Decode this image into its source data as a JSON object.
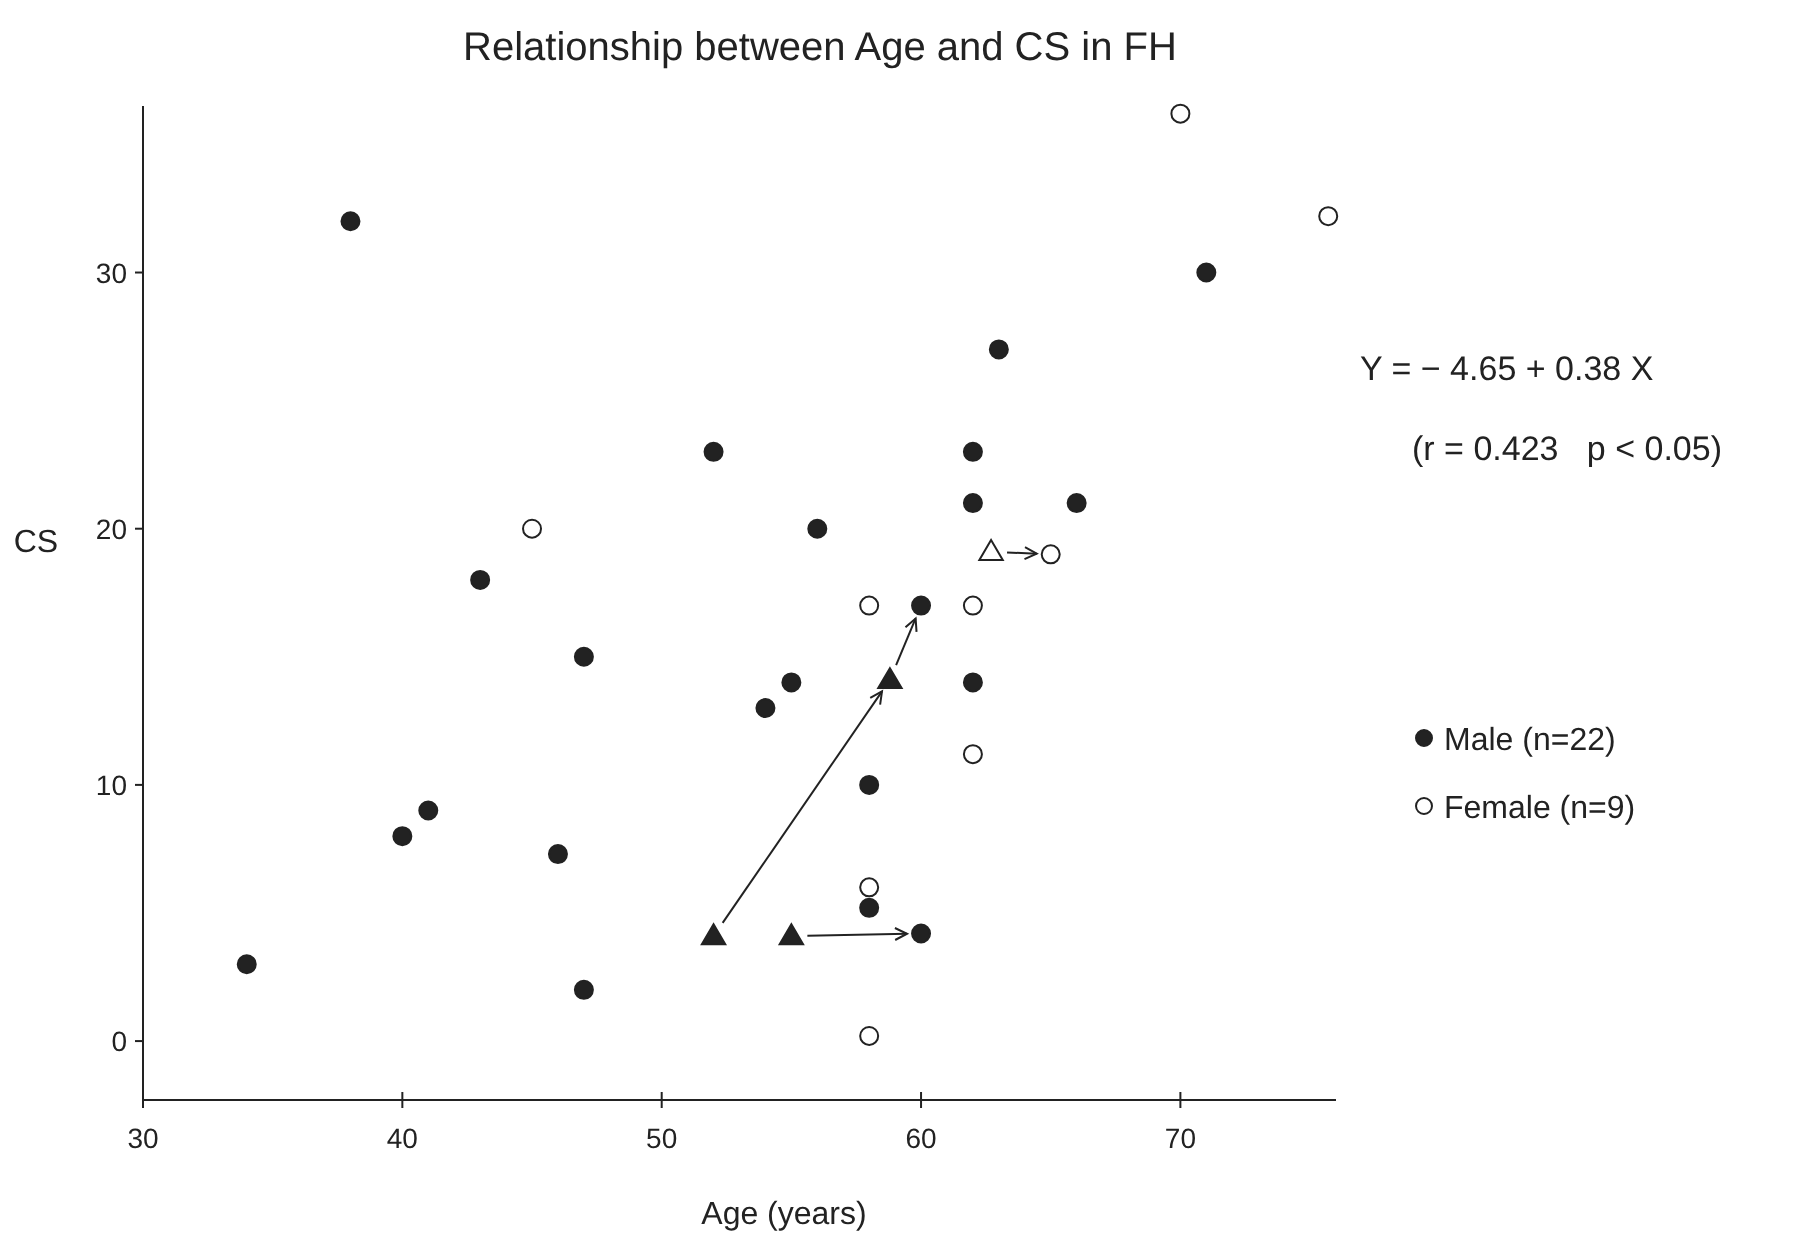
{
  "chart_data": {
    "type": "scatter",
    "title": "Relationship between Age and CS in FH",
    "xlabel": "Age (years)",
    "ylabel": "CS",
    "xlim": [
      30,
      76
    ],
    "xticks": [
      30,
      40,
      50,
      60,
      70
    ],
    "ylim": [
      -2.3,
      36.5
    ],
    "yticks": [
      0,
      10,
      20,
      30
    ],
    "legend": "right",
    "grid": false,
    "annotations": [
      "Y = − 4.65 + 0.38 X",
      "(r = 0.423   p < 0.05)"
    ],
    "series": [
      {
        "name": "Male (n=22)",
        "color": "#222222",
        "marker": "circle",
        "x": [
          38,
          52,
          43,
          47,
          56,
          71,
          63,
          62,
          62,
          66,
          60,
          54,
          55,
          58,
          40,
          41,
          46,
          58,
          34,
          47,
          62,
          60
        ],
        "values": [
          32,
          23,
          18,
          15,
          20,
          30,
          27,
          23,
          21,
          21,
          17,
          13,
          14,
          10,
          8,
          9,
          7.3,
          5.2,
          3,
          2,
          14,
          4.2
        ]
      },
      {
        "name": "Female (n=9)",
        "color": "#ffffff",
        "marker": "circle",
        "x": [
          45,
          58,
          70,
          75.7,
          65,
          62,
          62,
          58,
          58
        ],
        "values": [
          20,
          17,
          36.2,
          32.2,
          19,
          17,
          11.2,
          6,
          0.2
        ]
      },
      {
        "color": "#222222",
        "marker": "triangle",
        "x": [
          52,
          58.8,
          55
        ],
        "values": [
          4.1,
          14.1,
          4.1
        ]
      },
      {
        "color": "#ffffff",
        "marker": "triangle",
        "x": [
          62.7
        ],
        "values": [
          19.1
        ]
      }
    ]
  }
}
